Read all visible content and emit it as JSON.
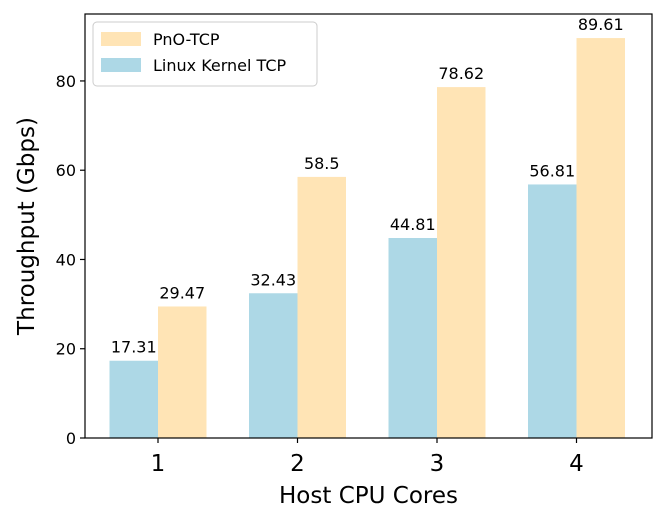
{
  "chart_data": {
    "type": "bar",
    "title": "",
    "xlabel": "Host CPU Cores",
    "ylabel": "Throughput (Gbps)",
    "categories": [
      "1",
      "2",
      "3",
      "4"
    ],
    "ylim": [
      0,
      95
    ],
    "yticks": [
      0,
      20,
      40,
      60,
      80
    ],
    "grid": false,
    "legend_position": "top-left",
    "series": [
      {
        "name": "Linux Kernel TCP",
        "color": "#ADD8E6",
        "values": [
          17.31,
          32.43,
          44.81,
          56.81
        ],
        "labels": [
          "17.31",
          "32.43",
          "44.81",
          "56.81"
        ]
      },
      {
        "name": "PnO-TCP",
        "color": "#FFE4B5",
        "values": [
          29.47,
          58.5,
          78.62,
          89.61
        ],
        "labels": [
          "29.47",
          "58.5",
          "78.62",
          "89.61"
        ]
      }
    ],
    "legend_order": [
      "PnO-TCP",
      "Linux Kernel TCP"
    ]
  }
}
